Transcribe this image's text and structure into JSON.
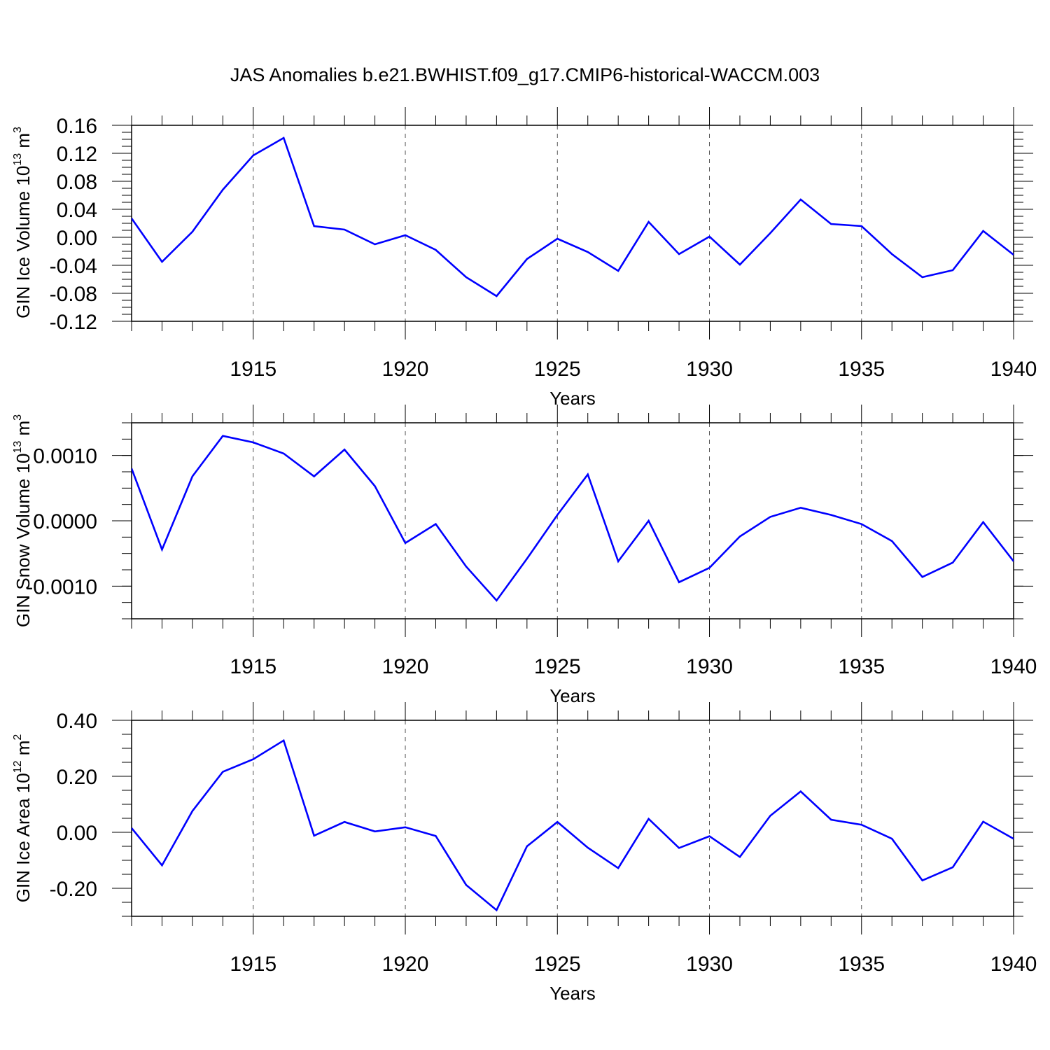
{
  "figure": {
    "title": "JAS Anomalies b.e21.BWHIST.f09_g17.CMIP6-historical-WACCM.003",
    "line_color": "#0000ff"
  },
  "chart_data": [
    {
      "type": "line",
      "ylabel": {
        "base": "GIN Ice Volume 10",
        "exponent": "13",
        "unit": " m",
        "unit_exponent": "3"
      },
      "xlabel": "Years",
      "xlim": [
        1911,
        1940
      ],
      "ylim": [
        -0.12,
        0.16
      ],
      "yticks": [
        -0.12,
        -0.08,
        -0.04,
        0.0,
        0.04,
        0.08,
        0.12,
        0.16
      ],
      "ytick_labels": [
        "-0.12",
        "-0.08",
        "-0.04",
        "0.00",
        "0.04",
        "0.08",
        "0.12",
        "0.16"
      ],
      "ytick_minor_step": 0.01,
      "xticks": [
        1915,
        1920,
        1925,
        1930,
        1935,
        1940
      ],
      "xtick_labels": [
        "1915",
        "1920",
        "1925",
        "1930",
        "1935",
        "1940"
      ],
      "grid_x": [
        1915,
        1920,
        1925,
        1930,
        1935
      ],
      "x": [
        1911,
        1912,
        1913,
        1914,
        1915,
        1916,
        1917,
        1918,
        1919,
        1920,
        1921,
        1922,
        1923,
        1924,
        1925,
        1926,
        1927,
        1928,
        1929,
        1930,
        1931,
        1932,
        1933,
        1934,
        1935,
        1936,
        1937,
        1938,
        1939,
        1940
      ],
      "series": [
        {
          "name": "GIN Ice Volume",
          "values": [
            0.027,
            -0.035,
            0.008,
            0.068,
            0.117,
            0.142,
            0.016,
            0.011,
            -0.01,
            0.003,
            -0.018,
            -0.057,
            -0.084,
            -0.031,
            -0.002,
            -0.021,
            -0.048,
            0.022,
            -0.024,
            0.001,
            -0.039,
            0.006,
            0.054,
            0.019,
            0.016,
            -0.024,
            -0.057,
            -0.047,
            0.009,
            -0.025
          ]
        }
      ]
    },
    {
      "type": "line",
      "ylabel": {
        "base": "GIN Snow Volume 10",
        "exponent": "13",
        "unit": " m",
        "unit_exponent": "3"
      },
      "xlabel": "Years",
      "xlim": [
        1911,
        1940
      ],
      "ylim": [
        -0.0015,
        0.0015
      ],
      "yticks": [
        -0.001,
        0.0,
        0.001
      ],
      "ytick_labels": [
        "-0.0010",
        "0.0000",
        "0.0010"
      ],
      "ytick_minor_step": 0.00025,
      "xticks": [
        1915,
        1920,
        1925,
        1930,
        1935,
        1940
      ],
      "xtick_labels": [
        "1915",
        "1920",
        "1925",
        "1930",
        "1935",
        "1940"
      ],
      "grid_x": [
        1915,
        1920,
        1925,
        1930,
        1935
      ],
      "x": [
        1911,
        1912,
        1913,
        1914,
        1915,
        1916,
        1917,
        1918,
        1919,
        1920,
        1921,
        1922,
        1923,
        1924,
        1925,
        1926,
        1927,
        1928,
        1929,
        1930,
        1931,
        1932,
        1933,
        1934,
        1935,
        1936,
        1937,
        1938,
        1939,
        1940
      ],
      "series": [
        {
          "name": "GIN Snow Volume",
          "values": [
            0.0008,
            -0.00044,
            0.00068,
            0.0013,
            0.0012,
            0.00103,
            0.00068,
            0.00109,
            0.00053,
            -0.00034,
            -5e-05,
            -0.0007,
            -0.00122,
            -0.00058,
            9e-05,
            0.00071,
            -0.00062,
            0.0,
            -0.00094,
            -0.00072,
            -0.00024,
            6e-05,
            0.0002,
            9e-05,
            -5e-05,
            -0.00031,
            -0.00086,
            -0.00064,
            -2e-05,
            -0.00062
          ]
        }
      ]
    },
    {
      "type": "line",
      "ylabel": {
        "base": "GIN Ice Area 10",
        "exponent": "12",
        "unit": " m",
        "unit_exponent": "2"
      },
      "xlabel": "Years",
      "xlim": [
        1911,
        1940
      ],
      "ylim": [
        -0.3,
        0.4
      ],
      "yticks": [
        -0.2,
        0.0,
        0.2,
        0.4
      ],
      "ytick_labels": [
        "-0.20",
        "0.00",
        "0.20",
        "0.40"
      ],
      "ytick_minor_step": 0.05,
      "xticks": [
        1915,
        1920,
        1925,
        1930,
        1935,
        1940
      ],
      "xtick_labels": [
        "1915",
        "1920",
        "1925",
        "1930",
        "1935",
        "1940"
      ],
      "grid_x": [
        1915,
        1920,
        1925,
        1930,
        1935
      ],
      "x": [
        1911,
        1912,
        1913,
        1914,
        1915,
        1916,
        1917,
        1918,
        1919,
        1920,
        1921,
        1922,
        1923,
        1924,
        1925,
        1926,
        1927,
        1928,
        1929,
        1930,
        1931,
        1932,
        1933,
        1934,
        1935,
        1936,
        1937,
        1938,
        1939,
        1940
      ],
      "series": [
        {
          "name": "GIN Ice Area",
          "values": [
            0.015,
            -0.118,
            0.076,
            0.216,
            0.261,
            0.328,
            -0.012,
            0.037,
            0.003,
            0.018,
            -0.013,
            -0.188,
            -0.278,
            -0.05,
            0.037,
            -0.055,
            -0.128,
            0.048,
            -0.056,
            -0.014,
            -0.088,
            0.059,
            0.146,
            0.045,
            0.027,
            -0.023,
            -0.172,
            -0.125,
            0.038,
            -0.023
          ]
        }
      ]
    }
  ]
}
